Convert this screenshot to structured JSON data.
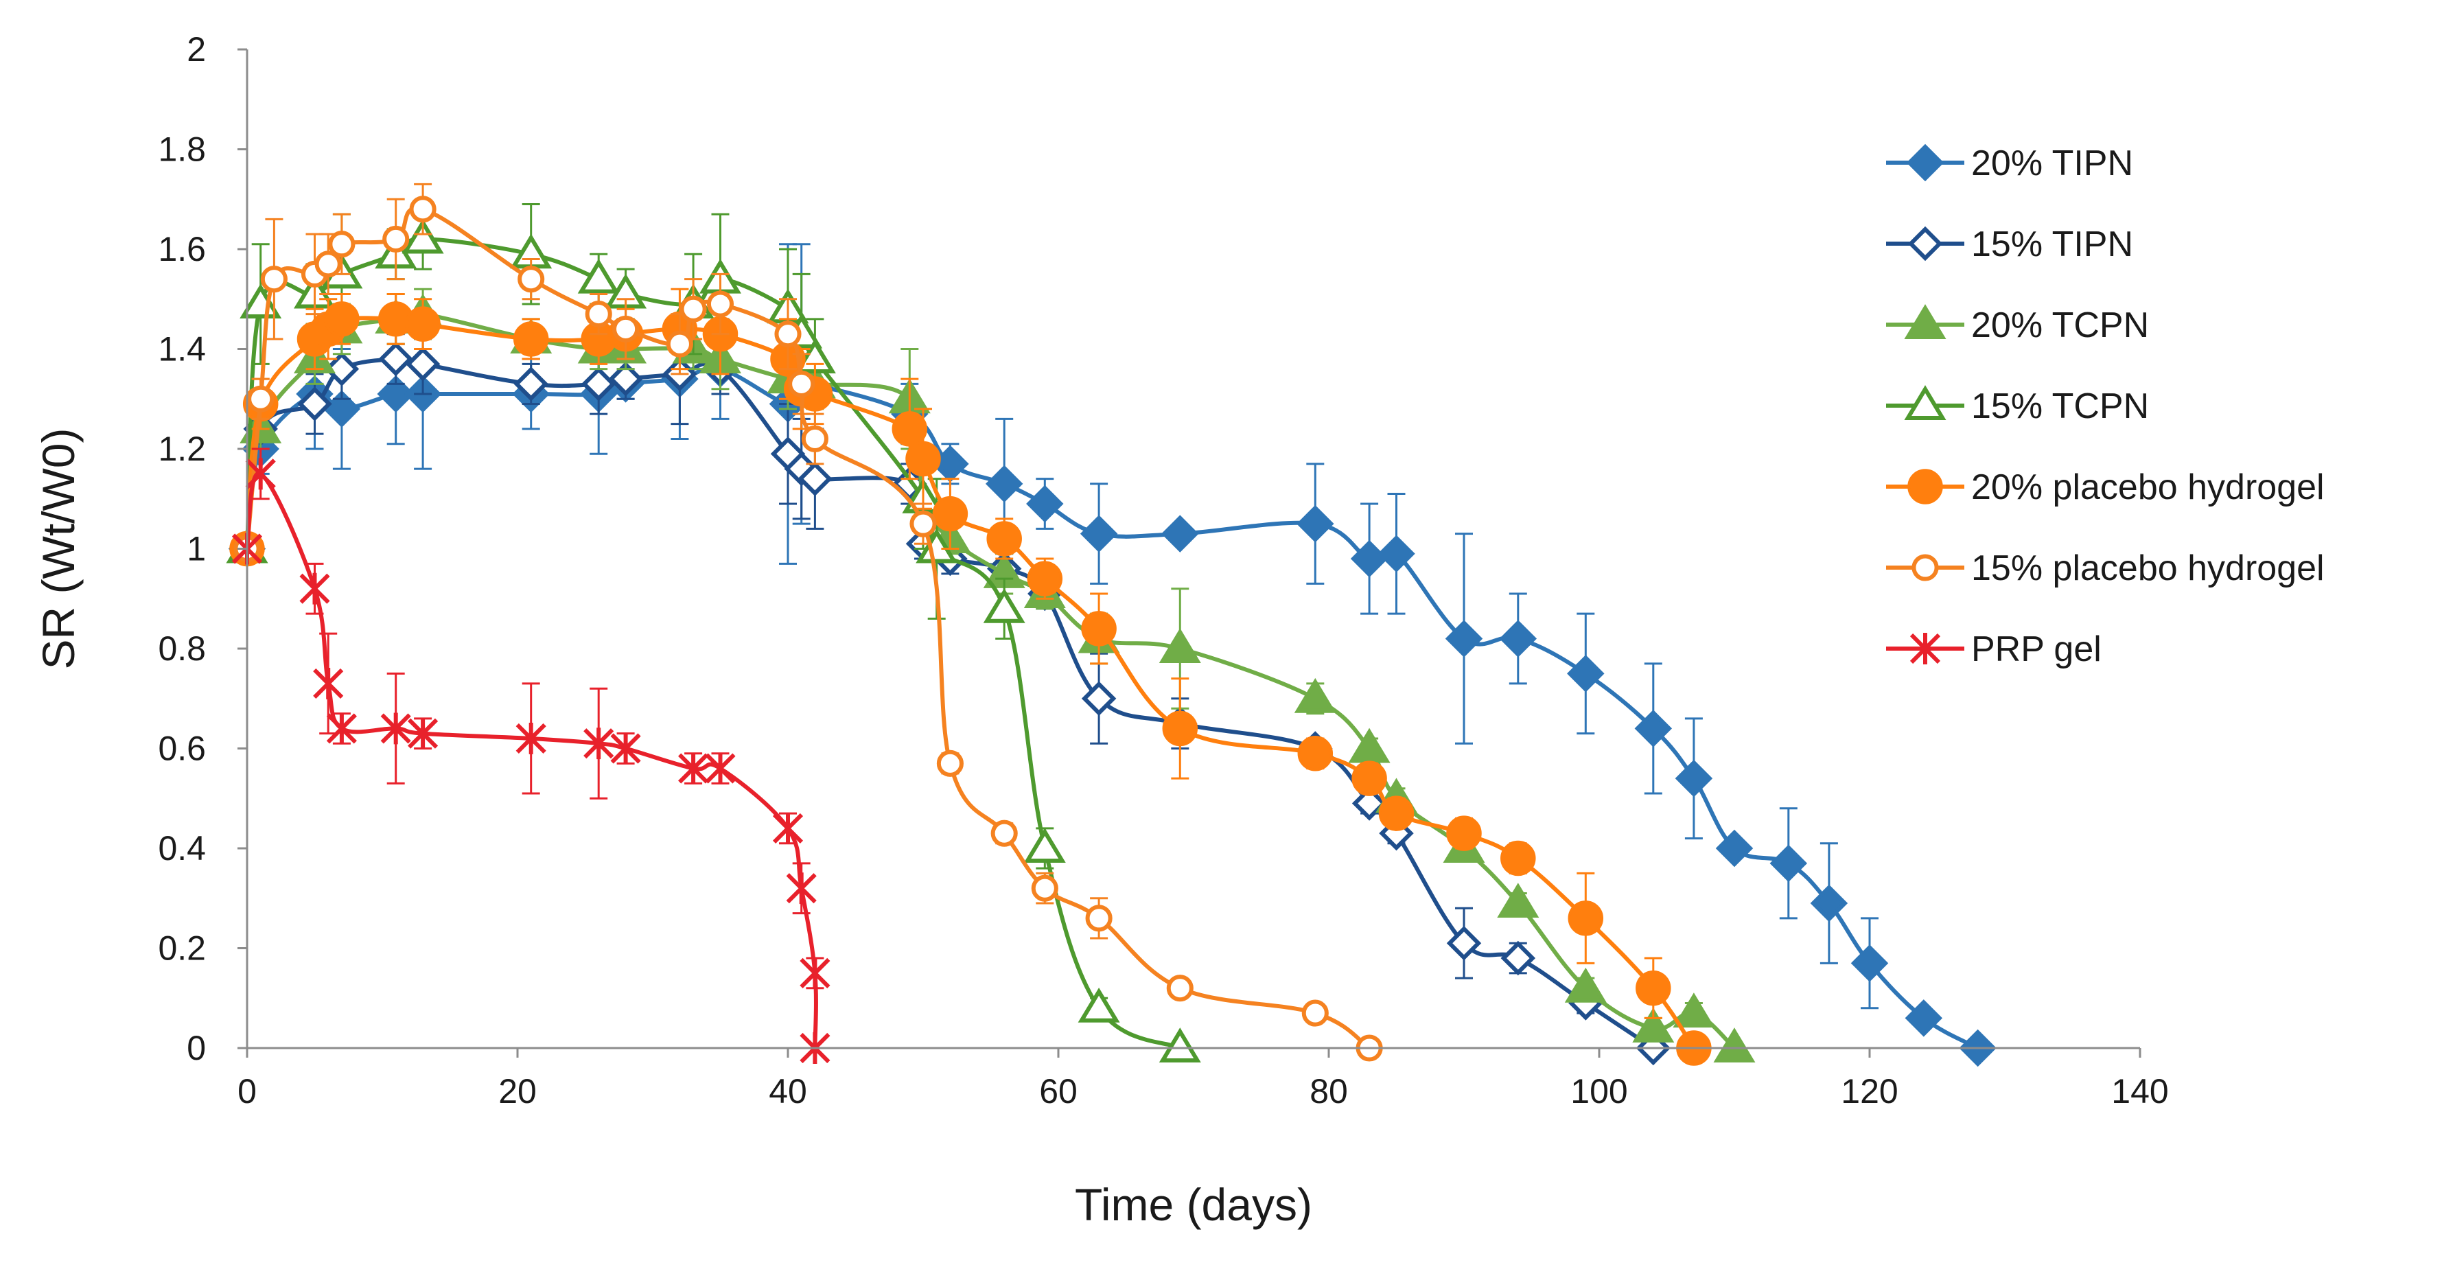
{
  "chart_data": {
    "type": "line",
    "title": "",
    "xlabel": "Time (days)",
    "ylabel": "SR (Wt/W0)",
    "xlim": [
      0,
      140
    ],
    "ylim": [
      0,
      2
    ],
    "xticks": [
      0,
      20,
      40,
      60,
      80,
      100,
      120,
      140
    ],
    "yticks": [
      0,
      0.2,
      0.4,
      0.6,
      0.8,
      1,
      1.2,
      1.4,
      1.6,
      1.8,
      2
    ],
    "ytick_labels": [
      "0",
      "0.2",
      "0.4",
      "0.6",
      "0.8",
      "1",
      "1.2",
      "1.4",
      "1.6",
      "1.8",
      "2"
    ],
    "grid": false,
    "legend_position": "right",
    "series": [
      {
        "name": "20% TIPN",
        "color": "#2e75b6",
        "marker": "diamond-filled",
        "x": [
          0,
          1,
          5,
          7,
          11,
          13,
          21,
          26,
          28,
          32,
          35,
          40,
          41,
          49,
          52,
          56,
          59,
          63,
          69,
          79,
          83,
          85,
          90,
          94,
          99,
          104,
          107,
          110,
          114,
          117,
          120,
          124,
          128
        ],
        "y": [
          1.0,
          1.2,
          1.31,
          1.28,
          1.31,
          1.31,
          1.31,
          1.31,
          1.33,
          1.34,
          1.36,
          1.29,
          1.33,
          1.27,
          1.17,
          1.13,
          1.09,
          1.03,
          1.03,
          1.05,
          0.98,
          0.99,
          0.82,
          0.82,
          0.75,
          0.64,
          0.54,
          0.4,
          0.37,
          0.29,
          0.17,
          0.06,
          0.0
        ],
        "err": [
          0,
          0.05,
          0.11,
          0.12,
          0.1,
          0.15,
          0.07,
          0.12,
          0.03,
          0.12,
          0.1,
          0.32,
          0.28,
          0.06,
          0.04,
          0.13,
          0.05,
          0.1,
          0,
          0.12,
          0.11,
          0.12,
          0.21,
          0.09,
          0.12,
          0.13,
          0.12,
          0,
          0.11,
          0.12,
          0.09,
          0,
          0
        ]
      },
      {
        "name": "15% TIPN",
        "color": "#1f4e8c",
        "marker": "diamond-open",
        "x": [
          0,
          1,
          5,
          7,
          11,
          13,
          21,
          26,
          28,
          32,
          35,
          40,
          41,
          42,
          49,
          50,
          52,
          56,
          59,
          63,
          69,
          79,
          83,
          85,
          90,
          94,
          99,
          104
        ],
        "y": [
          1.0,
          1.24,
          1.29,
          1.36,
          1.38,
          1.37,
          1.33,
          1.33,
          1.34,
          1.35,
          1.36,
          1.19,
          1.16,
          1.14,
          1.13,
          1.01,
          0.98,
          0.96,
          0.91,
          0.7,
          0.65,
          0.6,
          0.49,
          0.43,
          0.21,
          0.18,
          0.09,
          0.0
        ],
        "err": [
          0,
          0.04,
          0.06,
          0.06,
          0.05,
          0.06,
          0.04,
          0.06,
          0.04,
          0.1,
          0.05,
          0.1,
          0.1,
          0.1,
          0.04,
          0.03,
          0.03,
          0.03,
          0.03,
          0.09,
          0.05,
          0.02,
          0.02,
          0.02,
          0.07,
          0.03,
          0.02,
          0
        ]
      },
      {
        "name": "20% TCPN",
        "color": "#70ad47",
        "marker": "triangle-filled",
        "x": [
          0,
          1,
          5,
          7,
          11,
          13,
          21,
          26,
          28,
          33,
          35,
          40,
          42,
          49,
          50,
          52,
          56,
          59,
          63,
          69,
          79,
          83,
          85,
          90,
          94,
          99,
          104,
          107,
          110
        ],
        "y": [
          1.0,
          1.24,
          1.38,
          1.44,
          1.46,
          1.47,
          1.42,
          1.4,
          1.4,
          1.4,
          1.38,
          1.34,
          1.33,
          1.3,
          1.1,
          1.02,
          0.95,
          0.91,
          0.82,
          0.8,
          0.7,
          0.6,
          0.5,
          0.4,
          0.29,
          0.12,
          0.04,
          0.07,
          0.0
        ],
        "err": [
          0,
          0.04,
          0.05,
          0.05,
          0.05,
          0.05,
          0.04,
          0.04,
          0.04,
          0.04,
          0.06,
          0.06,
          0.05,
          0.1,
          0.1,
          0.03,
          0.04,
          0.03,
          0.05,
          0.12,
          0.03,
          0.02,
          0.02,
          0.02,
          0.02,
          0.02,
          0.02,
          0.02,
          0
        ]
      },
      {
        "name": "15% TCPN",
        "color": "#4e9a2e",
        "marker": "triangle-open",
        "x": [
          0,
          1,
          5,
          7,
          11,
          13,
          21,
          26,
          28,
          33,
          35,
          40,
          41,
          42,
          50,
          51,
          56,
          59,
          63,
          69
        ],
        "y": [
          1.0,
          1.49,
          1.51,
          1.55,
          1.59,
          1.62,
          1.59,
          1.54,
          1.51,
          1.49,
          1.54,
          1.48,
          1.43,
          1.38,
          1.1,
          1.0,
          0.88,
          0.4,
          0.08,
          0.0
        ],
        "err": [
          0,
          0.12,
          0.06,
          0.12,
          0.05,
          0.06,
          0.1,
          0.05,
          0.05,
          0.1,
          0.13,
          0.12,
          0.12,
          0.08,
          0.1,
          0.14,
          0.06,
          0.04,
          0.02,
          0
        ]
      },
      {
        "name": "20% placebo hydrogel",
        "color": "#ff7f0e",
        "marker": "circle-filled",
        "x": [
          0,
          1,
          5,
          6,
          7,
          11,
          13,
          21,
          26,
          28,
          32,
          35,
          40,
          41,
          42,
          49,
          50,
          52,
          56,
          59,
          63,
          69,
          79,
          83,
          85,
          90,
          94,
          99,
          104,
          107
        ],
        "y": [
          1.0,
          1.29,
          1.42,
          1.44,
          1.46,
          1.46,
          1.45,
          1.42,
          1.42,
          1.43,
          1.44,
          1.43,
          1.38,
          1.32,
          1.31,
          1.24,
          1.18,
          1.07,
          1.02,
          0.94,
          0.84,
          0.64,
          0.59,
          0.54,
          0.47,
          0.43,
          0.38,
          0.26,
          0.12,
          0.0
        ],
        "err": [
          0,
          0.05,
          0.06,
          0.06,
          0.05,
          0.05,
          0.05,
          0.04,
          0.05,
          0.05,
          0.08,
          0.08,
          0.08,
          0.08,
          0.06,
          0.1,
          0.1,
          0.07,
          0.04,
          0.04,
          0.07,
          0.1,
          0.03,
          0.03,
          0.03,
          0.03,
          0.03,
          0.09,
          0.06,
          0
        ]
      },
      {
        "name": "15% placebo hydrogel",
        "color": "#f58220",
        "marker": "circle-open",
        "x": [
          0,
          1,
          2,
          5,
          6,
          7,
          11,
          13,
          21,
          26,
          28,
          32,
          33,
          35,
          40,
          41,
          42,
          50,
          52,
          56,
          59,
          63,
          69,
          79,
          83
        ],
        "y": [
          1.0,
          1.3,
          1.54,
          1.55,
          1.57,
          1.61,
          1.62,
          1.68,
          1.54,
          1.47,
          1.44,
          1.41,
          1.48,
          1.49,
          1.43,
          1.33,
          1.22,
          1.05,
          0.57,
          0.43,
          0.32,
          0.26,
          0.12,
          0.07,
          0.0
        ],
        "err": [
          0,
          0.04,
          0.12,
          0.08,
          0.06,
          0.06,
          0.08,
          0.05,
          0.04,
          0.04,
          0.06,
          0.06,
          0.06,
          0.06,
          0.07,
          0.06,
          0.05,
          0.04,
          0.02,
          0.02,
          0.03,
          0.04,
          0.01,
          0.01,
          0
        ]
      },
      {
        "name": "PRP gel",
        "color": "#e8212b",
        "marker": "star",
        "x": [
          0,
          1,
          5,
          6,
          7,
          11,
          13,
          21,
          26,
          28,
          33,
          35,
          40,
          41,
          42
        ],
        "y": [
          1.0,
          1.15,
          0.92,
          0.73,
          0.64,
          0.64,
          0.63,
          0.62,
          0.61,
          0.6,
          0.56,
          0.56,
          0.44,
          0.32,
          0.15
        ],
        "err": [
          0,
          0.05,
          0.05,
          0.1,
          0.03,
          0.11,
          0.03,
          0.11,
          0.11,
          0.03,
          0.03,
          0.03,
          0.03,
          0.05,
          0.03
        ]
      }
    ],
    "extra_points": [
      {
        "series": "PRP gel",
        "x": 42,
        "y": 0.0
      }
    ]
  }
}
